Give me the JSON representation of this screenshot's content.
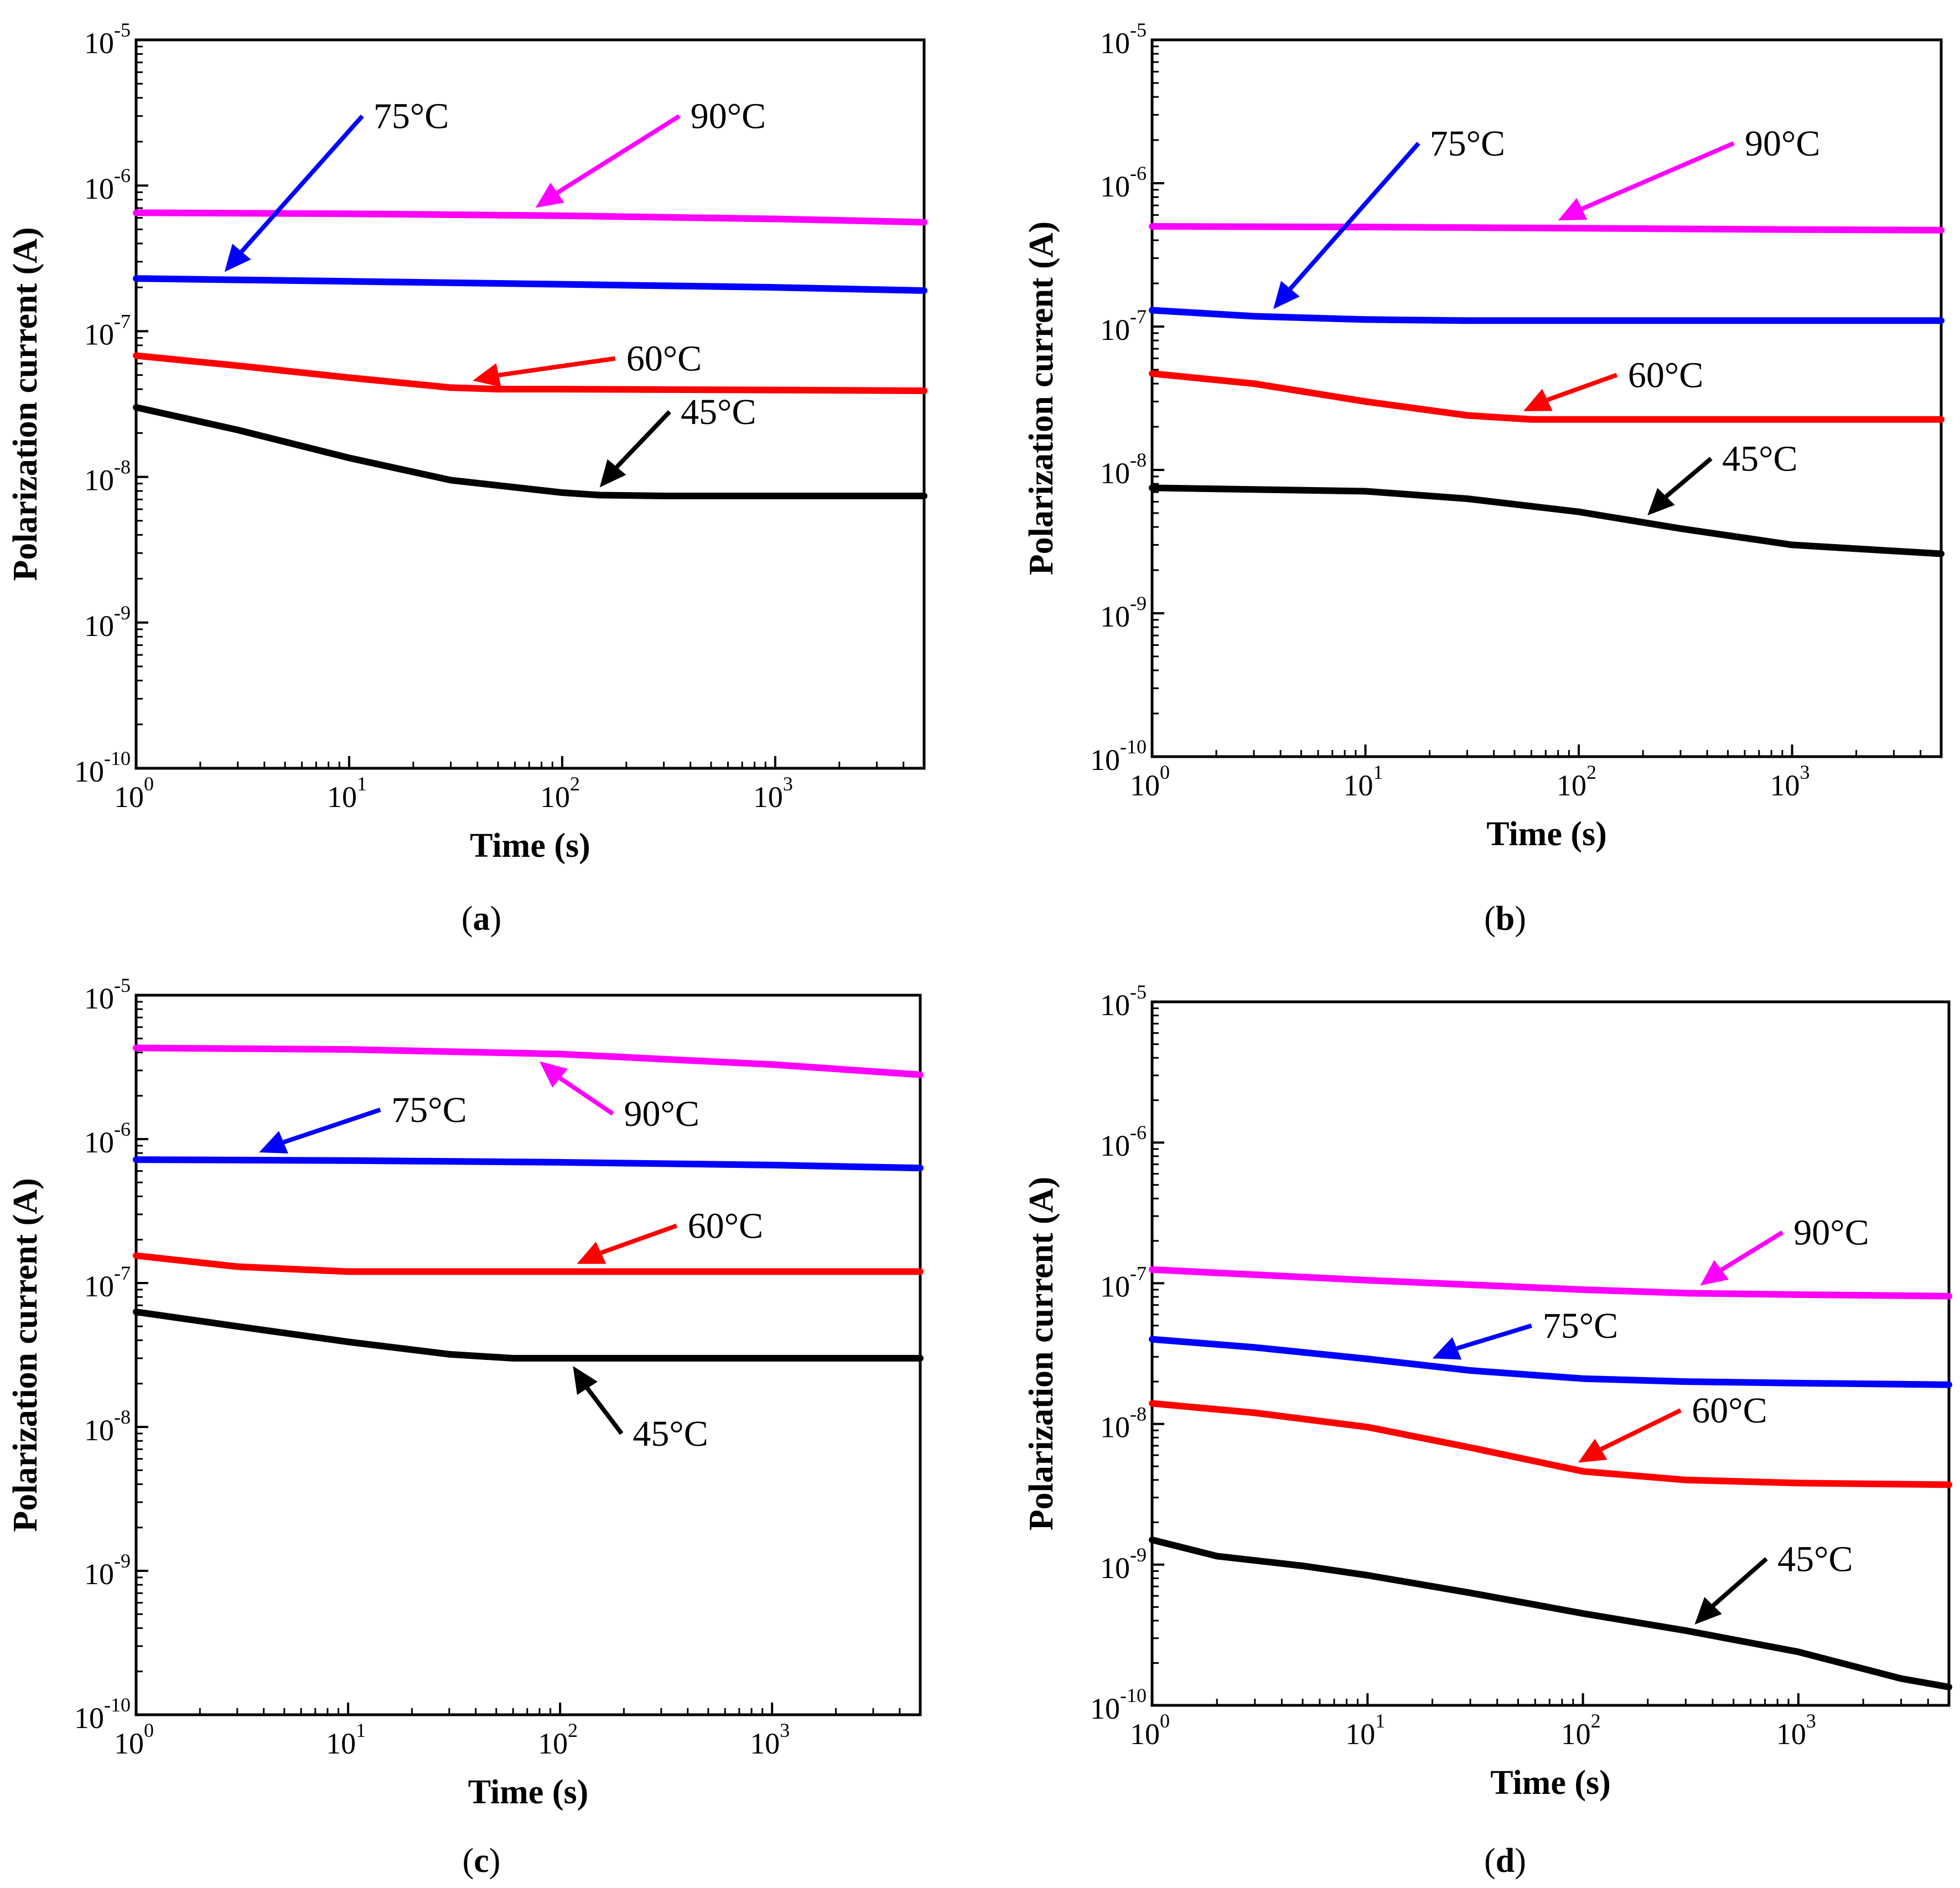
{
  "chart_data": [
    {
      "type": "line",
      "caption_letter": "a",
      "xscale": "log",
      "yscale": "log",
      "xlim": [
        1,
        5000
      ],
      "ylim": [
        1e-10,
        1e-05
      ],
      "xlabel": "Time (s)",
      "ylabel": "Polarization current (A)",
      "x_tick_exponents": [
        "0",
        "1",
        "2",
        "3"
      ],
      "y_tick_exponents": [
        "-10",
        "-9",
        "-8",
        "-7",
        "-6",
        "-5"
      ],
      "series": [
        {
          "name": "90°C",
          "color": "#ff00ff",
          "x": [
            1,
            10,
            100,
            1000,
            5000
          ],
          "y": [
            6.5e-07,
            6.4e-07,
            6.2e-07,
            5.9e-07,
            5.6e-07
          ],
          "arrow_at": 75,
          "label_x": 400,
          "label_y": 3e-06
        },
        {
          "name": "75°C",
          "color": "#0000ff",
          "x": [
            1,
            10,
            100,
            1000,
            5000
          ],
          "y": [
            2.3e-07,
            2.2e-07,
            2.1e-07,
            2e-07,
            1.9e-07
          ],
          "arrow_at": 2.6,
          "label_x": 13,
          "label_y": 3e-06
        },
        {
          "name": "60°C",
          "color": "#ff0000",
          "x": [
            1,
            3,
            10,
            30,
            50,
            100,
            1000,
            5000
          ],
          "y": [
            6.8e-08,
            5.8e-08,
            4.8e-08,
            4.1e-08,
            4e-08,
            4e-08,
            3.95e-08,
            3.9e-08
          ],
          "arrow_at": 38,
          "label_x": 200,
          "label_y": 6.5e-08
        },
        {
          "name": "45°C",
          "color": "#000000",
          "x": [
            1,
            3,
            10,
            30,
            100,
            150,
            300,
            1000,
            5000
          ],
          "y": [
            3e-08,
            2.1e-08,
            1.35e-08,
            9.5e-09,
            7.8e-09,
            7.5e-09,
            7.4e-09,
            7.4e-09,
            7.4e-09
          ],
          "arrow_at": 150,
          "label_x": 360,
          "label_y": 2.8e-08
        }
      ]
    },
    {
      "type": "line",
      "caption_letter": "b",
      "xscale": "log",
      "yscale": "log",
      "xlim": [
        1,
        5000
      ],
      "ylim": [
        1e-10,
        1e-05
      ],
      "xlabel": "Time (s)",
      "ylabel": "Polarization current (A)",
      "x_tick_exponents": [
        "0",
        "1",
        "2",
        "3"
      ],
      "y_tick_exponents": [
        "-10",
        "-9",
        "-8",
        "-7",
        "-6",
        "-5"
      ],
      "series": [
        {
          "name": "90°C",
          "color": "#ff00ff",
          "x": [
            1,
            10,
            100,
            1000,
            5000
          ],
          "y": [
            5e-07,
            4.95e-07,
            4.85e-07,
            4.75e-07,
            4.7e-07
          ],
          "arrow_at": 80,
          "label_x": 600,
          "label_y": 1.9e-06
        },
        {
          "name": "75°C",
          "color": "#0000ff",
          "x": [
            1,
            3,
            10,
            30,
            100,
            1000,
            5000
          ],
          "y": [
            1.3e-07,
            1.18e-07,
            1.12e-07,
            1.1e-07,
            1.1e-07,
            1.1e-07,
            1.1e-07
          ],
          "arrow_at": 3.7,
          "label_x": 20,
          "label_y": 1.9e-06
        },
        {
          "name": "60°C",
          "color": "#ff0000",
          "x": [
            1,
            3,
            10,
            30,
            60,
            100,
            1000,
            5000
          ],
          "y": [
            4.7e-08,
            4e-08,
            3e-08,
            2.4e-08,
            2.25e-08,
            2.25e-08,
            2.25e-08,
            2.25e-08
          ],
          "arrow_at": 55,
          "label_x": 170,
          "label_y": 4.6e-08
        },
        {
          "name": "45°C",
          "color": "#000000",
          "x": [
            1,
            10,
            30,
            100,
            300,
            1000,
            5000
          ],
          "y": [
            7.5e-09,
            7.1e-09,
            6.3e-09,
            5.1e-09,
            3.9e-09,
            3e-09,
            2.6e-09
          ],
          "arrow_at": 210,
          "label_x": 470,
          "label_y": 1.2e-08
        }
      ]
    },
    {
      "type": "line",
      "caption_letter": "c",
      "xscale": "log",
      "yscale": "log",
      "xlim": [
        1,
        5000
      ],
      "ylim": [
        1e-10,
        1e-05
      ],
      "xlabel": "Time (s)",
      "ylabel": "Polarization current (A)",
      "x_tick_exponents": [
        "0",
        "1",
        "2",
        "3"
      ],
      "y_tick_exponents": [
        "-10",
        "-9",
        "-8",
        "-7",
        "-6",
        "-5"
      ],
      "series": [
        {
          "name": "90°C",
          "color": "#ff00ff",
          "x": [
            1,
            10,
            100,
            1000,
            5000
          ],
          "y": [
            4.3e-06,
            4.2e-06,
            3.9e-06,
            3.3e-06,
            2.8e-06
          ],
          "arrow_at": 80,
          "label_x": 200,
          "label_y": 1.5e-06
        },
        {
          "name": "75°C",
          "color": "#0000ff",
          "x": [
            1,
            10,
            100,
            1000,
            5000
          ],
          "y": [
            7.2e-07,
            7.1e-07,
            6.9e-07,
            6.6e-07,
            6.3e-07
          ],
          "arrow_at": 3.8,
          "label_x": 16,
          "label_y": 1.6e-06
        },
        {
          "name": "60°C",
          "color": "#ff0000",
          "x": [
            1,
            3,
            10,
            30,
            100,
            1000,
            5000
          ],
          "y": [
            1.55e-07,
            1.3e-07,
            1.2e-07,
            1.2e-07,
            1.2e-07,
            1.2e-07,
            1.2e-07
          ],
          "arrow_at": 120,
          "label_x": 400,
          "label_y": 2.5e-07
        },
        {
          "name": "45°C",
          "color": "#000000",
          "x": [
            1,
            3,
            10,
            30,
            60,
            100,
            1000,
            5000
          ],
          "y": [
            6.3e-08,
            5e-08,
            3.9e-08,
            3.2e-08,
            3e-08,
            3e-08,
            3e-08,
            3e-08
          ],
          "arrow_at": 115,
          "label_x": 220,
          "label_y": 9e-09
        }
      ]
    },
    {
      "type": "line",
      "caption_letter": "d",
      "xscale": "log",
      "yscale": "log",
      "xlim": [
        1,
        5000
      ],
      "ylim": [
        1e-10,
        1e-05
      ],
      "xlabel": "Time (s)",
      "ylabel": "Polarization current (A)",
      "x_tick_exponents": [
        "0",
        "1",
        "2",
        "3"
      ],
      "y_tick_exponents": [
        "-10",
        "-9",
        "-8",
        "-7",
        "-6",
        "-5"
      ],
      "series": [
        {
          "name": "90°C",
          "color": "#ff00ff",
          "x": [
            1,
            10,
            100,
            300,
            1000,
            5000
          ],
          "y": [
            1.25e-07,
            1.05e-07,
            9e-08,
            8.5e-08,
            8.3e-08,
            8.1e-08
          ],
          "arrow_at": 350,
          "label_x": 950,
          "label_y": 2.3e-07
        },
        {
          "name": "75°C",
          "color": "#0000ff",
          "x": [
            1,
            3,
            10,
            30,
            100,
            300,
            1000,
            5000
          ],
          "y": [
            4e-08,
            3.5e-08,
            2.9e-08,
            2.4e-08,
            2.1e-08,
            2e-08,
            1.95e-08,
            1.9e-08
          ],
          "arrow_at": 20,
          "label_x": 65,
          "label_y": 5e-08
        },
        {
          "name": "60°C",
          "color": "#ff0000",
          "x": [
            1,
            3,
            10,
            30,
            100,
            300,
            1000,
            5000
          ],
          "y": [
            1.4e-08,
            1.2e-08,
            9.5e-09,
            6.8e-09,
            4.6e-09,
            4e-09,
            3.8e-09,
            3.7e-09
          ],
          "arrow_at": 95,
          "label_x": 320,
          "label_y": 1.25e-08
        },
        {
          "name": "45°C",
          "color": "#000000",
          "x": [
            1,
            2,
            5,
            10,
            30,
            100,
            300,
            1000,
            3000,
            5000
          ],
          "y": [
            1.5e-09,
            1.15e-09,
            9.8e-10,
            8.4e-10,
            6.3e-10,
            4.5e-10,
            3.4e-10,
            2.4e-10,
            1.55e-10,
            1.35e-10
          ],
          "arrow_at": 330,
          "label_x": 800,
          "label_y": 1.1e-09
        }
      ]
    }
  ]
}
